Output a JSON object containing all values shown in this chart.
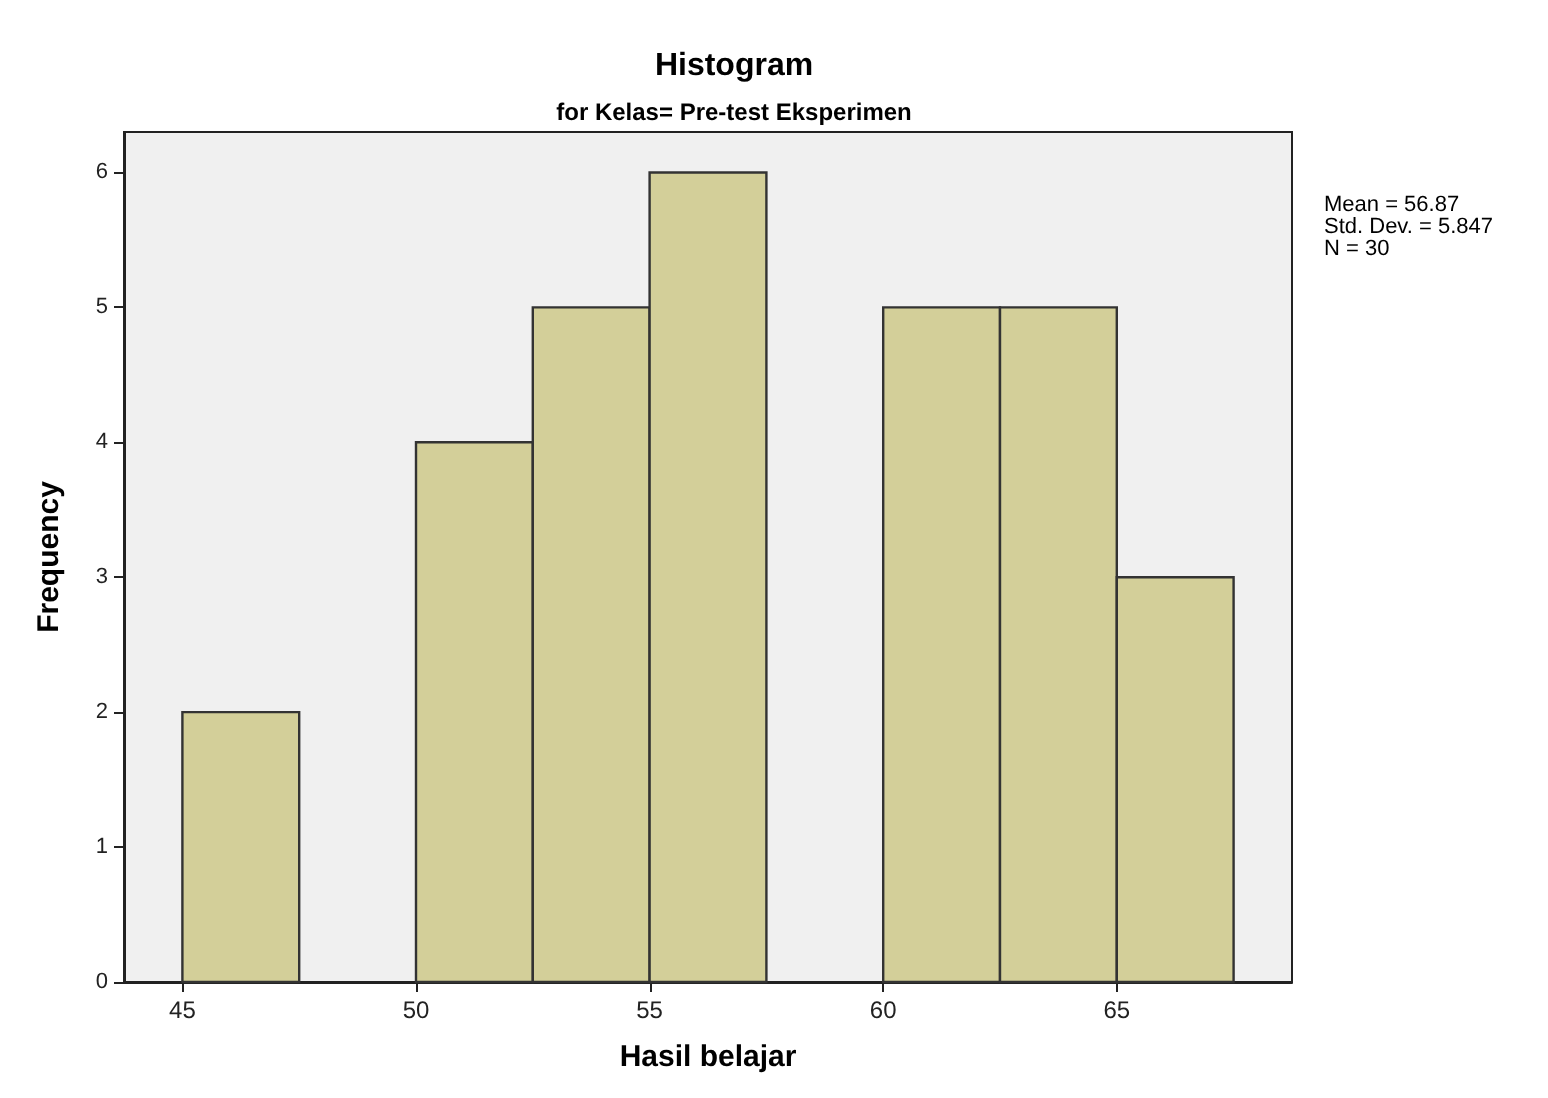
{
  "chart_data": {
    "type": "histogram",
    "title": "Histogram",
    "subtitle": "for Kelas= Pre-test Eksperimen",
    "xlabel": "Hasil belajar",
    "ylabel": "Frequency",
    "bins": [
      45,
      47.5,
      50,
      52.5,
      55,
      57.5,
      60,
      62.5,
      65,
      67.5
    ],
    "values": [
      2,
      0,
      4,
      5,
      6,
      0,
      5,
      5,
      3
    ],
    "color": "#d3cf99",
    "xlim": [
      43.75,
      68.75
    ],
    "xticks": [
      45,
      50,
      55,
      60,
      65
    ],
    "ylim": [
      0,
      6.3
    ],
    "yticks": [
      0,
      1,
      2,
      3,
      4,
      5,
      6
    ],
    "grid": false,
    "annotations": [
      "Mean = 56.87",
      "Std. Dev. = 5.847",
      "N = 30"
    ]
  }
}
